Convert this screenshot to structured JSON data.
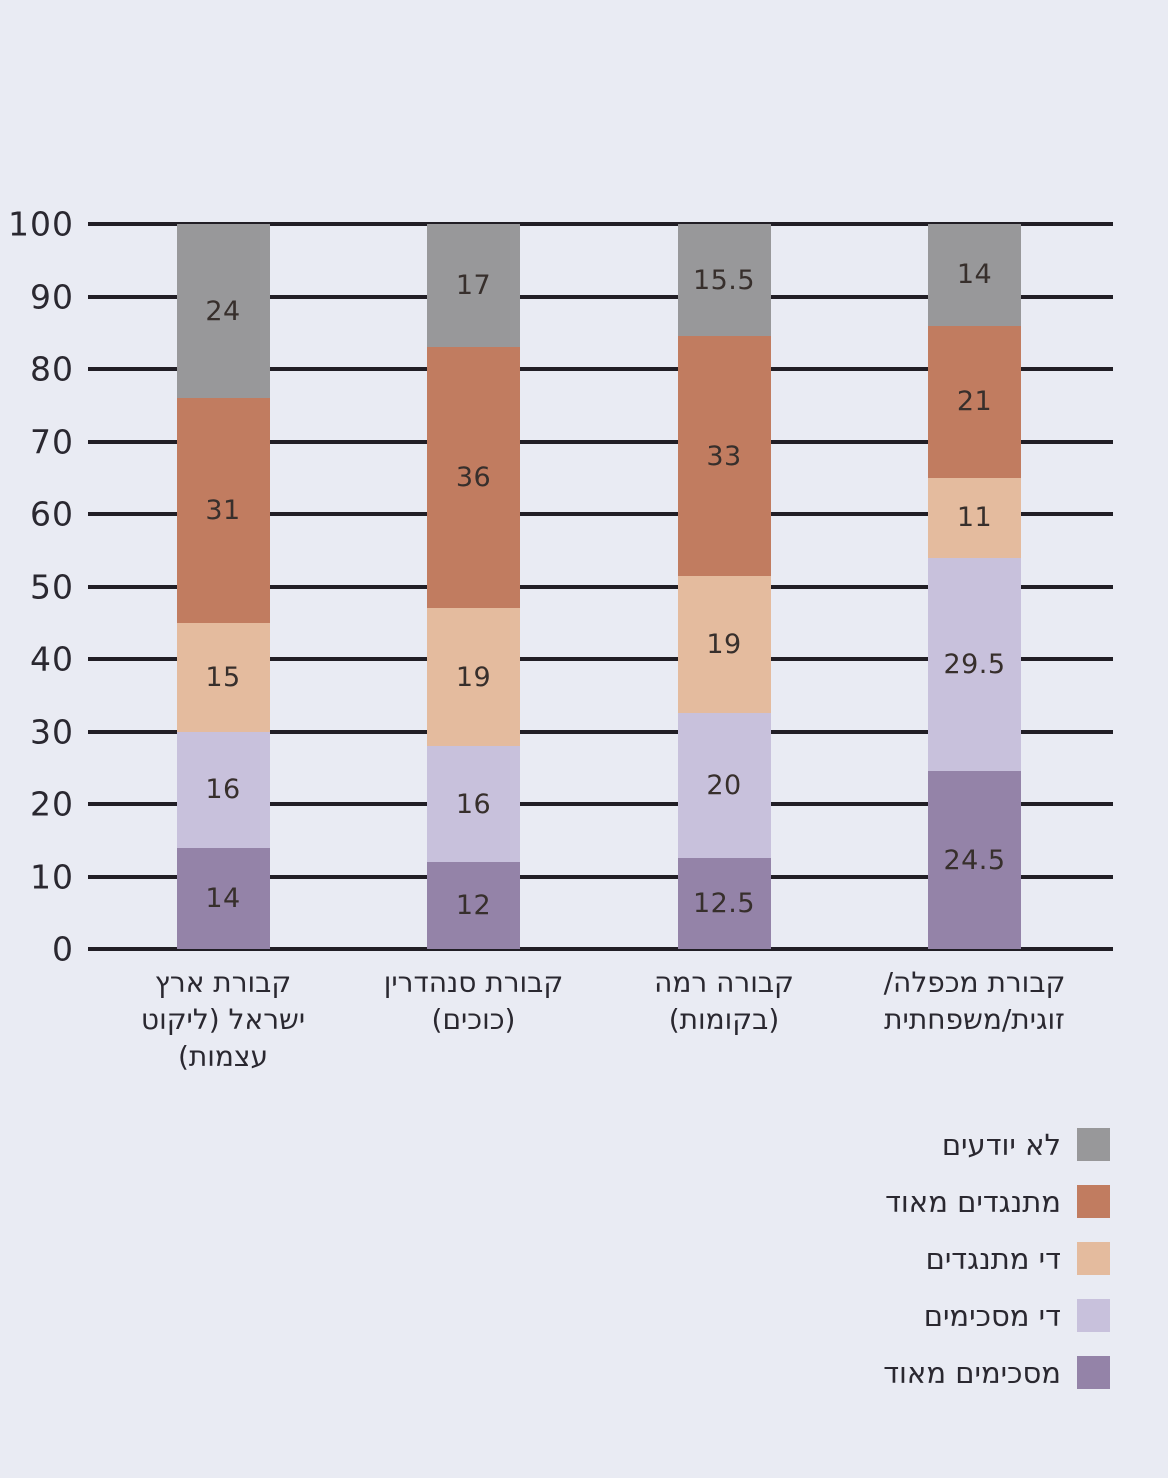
{
  "page": {
    "background_color": "#e9ebf3",
    "title": ""
  },
  "chart_data": {
    "type": "bar",
    "subtype": "stacked-vertical",
    "title": "",
    "xlabel": "",
    "ylabel": "",
    "ylim": [
      0,
      100
    ],
    "yticks": [
      0,
      10,
      20,
      30,
      40,
      50,
      60,
      70,
      80,
      90,
      100
    ],
    "grid": true,
    "grid_color": "#211e25",
    "legend_position": "bottom-right",
    "legend_order_top_to_bottom": [
      "לא יודעים",
      "מתנגדים מאוד",
      "די מתנגדים",
      "די מסכימים",
      "מסכימים מאוד"
    ],
    "categories": [
      {
        "label": "קבורת ארץ ישראל (ליקוט עצמות)",
        "display_lines": "קבורת ארץ\nישראל (ליקוט\nעצמות)"
      },
      {
        "label": "קבורת סנהדרין (כוכים)",
        "display_lines": "קבורת סנהדרין\n(כוכים)"
      },
      {
        "label": "קבורה רמה (בקומות)",
        "display_lines": "קבורה רמה\n(בקומות)"
      },
      {
        "label": "קבורת מכפלה/זוגית/משפחתית",
        "display_lines": "קבורת מכפלה/\nזוגית/משפחתית"
      }
    ],
    "series_stack_order": "bottom-to-top",
    "series": [
      {
        "name": "מסכימים מאוד",
        "color": "#9483a8",
        "values": [
          14,
          12,
          12.5,
          24.5
        ]
      },
      {
        "name": "די מסכימים",
        "color": "#c8c1dc",
        "values": [
          16,
          16,
          20,
          29.5
        ]
      },
      {
        "name": "די מתנגדים",
        "color": "#e4bb9e",
        "values": [
          15,
          19,
          19,
          11
        ]
      },
      {
        "name": "מתנגדים מאוד",
        "color": "#c17c60",
        "values": [
          31,
          36,
          33,
          21
        ]
      },
      {
        "name": "לא יודעים",
        "color": "#98989a",
        "values": [
          24,
          17,
          15.5,
          14
        ]
      }
    ],
    "value_label_color": "#372f2c",
    "axis_label_color": "#2a2830"
  }
}
